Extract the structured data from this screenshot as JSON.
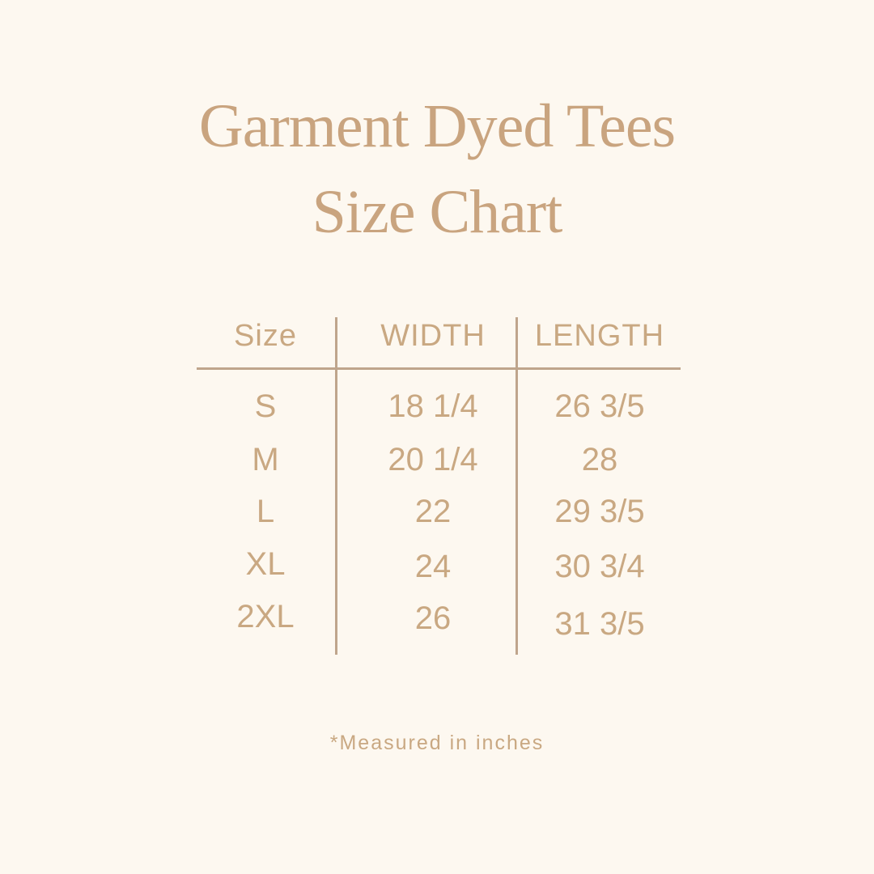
{
  "title": {
    "line1": "Garment Dyed Tees",
    "line2": "Size Chart"
  },
  "table": {
    "headers": [
      "Size",
      "WIDTH",
      "LENGTH"
    ],
    "rows": [
      [
        "S",
        "18 1/4",
        "26 3/5"
      ],
      [
        "M",
        "20 1/4",
        "28"
      ],
      [
        "L",
        "22",
        "29 3/5"
      ],
      [
        "XL",
        "24",
        "30 3/4"
      ],
      [
        "2XL",
        "26",
        "31 3/5"
      ]
    ]
  },
  "footnote": "*Measured in inches",
  "colors": {
    "background": "#fdf8f0",
    "text": "#c9a882",
    "lines": "#bfa58c"
  }
}
